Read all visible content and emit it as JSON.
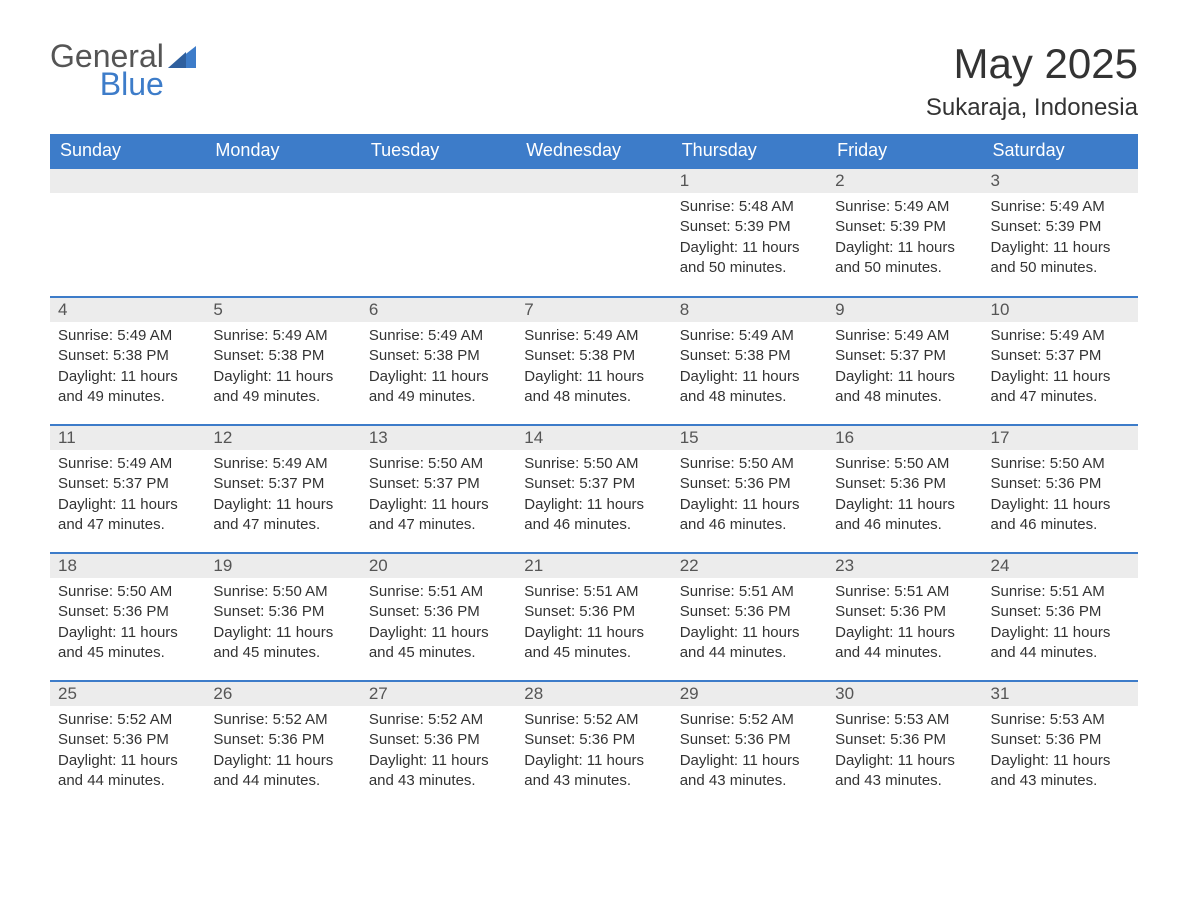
{
  "brand": {
    "line1": "General",
    "line2": "Blue"
  },
  "title": "May 2025",
  "location": "Sukaraja, Indonesia",
  "colors": {
    "header_bg": "#3d7cc9",
    "header_text": "#ffffff",
    "daynum_bg": "#ececec",
    "border": "#3d7cc9",
    "logo_blue": "#3d7cc9",
    "text": "#333333"
  },
  "day_headers": [
    "Sunday",
    "Monday",
    "Tuesday",
    "Wednesday",
    "Thursday",
    "Friday",
    "Saturday"
  ],
  "weeks": [
    [
      null,
      null,
      null,
      null,
      {
        "n": "1",
        "sunrise": "5:48 AM",
        "sunset": "5:39 PM",
        "daylight": "11 hours and 50 minutes."
      },
      {
        "n": "2",
        "sunrise": "5:49 AM",
        "sunset": "5:39 PM",
        "daylight": "11 hours and 50 minutes."
      },
      {
        "n": "3",
        "sunrise": "5:49 AM",
        "sunset": "5:39 PM",
        "daylight": "11 hours and 50 minutes."
      }
    ],
    [
      {
        "n": "4",
        "sunrise": "5:49 AM",
        "sunset": "5:38 PM",
        "daylight": "11 hours and 49 minutes."
      },
      {
        "n": "5",
        "sunrise": "5:49 AM",
        "sunset": "5:38 PM",
        "daylight": "11 hours and 49 minutes."
      },
      {
        "n": "6",
        "sunrise": "5:49 AM",
        "sunset": "5:38 PM",
        "daylight": "11 hours and 49 minutes."
      },
      {
        "n": "7",
        "sunrise": "5:49 AM",
        "sunset": "5:38 PM",
        "daylight": "11 hours and 48 minutes."
      },
      {
        "n": "8",
        "sunrise": "5:49 AM",
        "sunset": "5:38 PM",
        "daylight": "11 hours and 48 minutes."
      },
      {
        "n": "9",
        "sunrise": "5:49 AM",
        "sunset": "5:37 PM",
        "daylight": "11 hours and 48 minutes."
      },
      {
        "n": "10",
        "sunrise": "5:49 AM",
        "sunset": "5:37 PM",
        "daylight": "11 hours and 47 minutes."
      }
    ],
    [
      {
        "n": "11",
        "sunrise": "5:49 AM",
        "sunset": "5:37 PM",
        "daylight": "11 hours and 47 minutes."
      },
      {
        "n": "12",
        "sunrise": "5:49 AM",
        "sunset": "5:37 PM",
        "daylight": "11 hours and 47 minutes."
      },
      {
        "n": "13",
        "sunrise": "5:50 AM",
        "sunset": "5:37 PM",
        "daylight": "11 hours and 47 minutes."
      },
      {
        "n": "14",
        "sunrise": "5:50 AM",
        "sunset": "5:37 PM",
        "daylight": "11 hours and 46 minutes."
      },
      {
        "n": "15",
        "sunrise": "5:50 AM",
        "sunset": "5:36 PM",
        "daylight": "11 hours and 46 minutes."
      },
      {
        "n": "16",
        "sunrise": "5:50 AM",
        "sunset": "5:36 PM",
        "daylight": "11 hours and 46 minutes."
      },
      {
        "n": "17",
        "sunrise": "5:50 AM",
        "sunset": "5:36 PM",
        "daylight": "11 hours and 46 minutes."
      }
    ],
    [
      {
        "n": "18",
        "sunrise": "5:50 AM",
        "sunset": "5:36 PM",
        "daylight": "11 hours and 45 minutes."
      },
      {
        "n": "19",
        "sunrise": "5:50 AM",
        "sunset": "5:36 PM",
        "daylight": "11 hours and 45 minutes."
      },
      {
        "n": "20",
        "sunrise": "5:51 AM",
        "sunset": "5:36 PM",
        "daylight": "11 hours and 45 minutes."
      },
      {
        "n": "21",
        "sunrise": "5:51 AM",
        "sunset": "5:36 PM",
        "daylight": "11 hours and 45 minutes."
      },
      {
        "n": "22",
        "sunrise": "5:51 AM",
        "sunset": "5:36 PM",
        "daylight": "11 hours and 44 minutes."
      },
      {
        "n": "23",
        "sunrise": "5:51 AM",
        "sunset": "5:36 PM",
        "daylight": "11 hours and 44 minutes."
      },
      {
        "n": "24",
        "sunrise": "5:51 AM",
        "sunset": "5:36 PM",
        "daylight": "11 hours and 44 minutes."
      }
    ],
    [
      {
        "n": "25",
        "sunrise": "5:52 AM",
        "sunset": "5:36 PM",
        "daylight": "11 hours and 44 minutes."
      },
      {
        "n": "26",
        "sunrise": "5:52 AM",
        "sunset": "5:36 PM",
        "daylight": "11 hours and 44 minutes."
      },
      {
        "n": "27",
        "sunrise": "5:52 AM",
        "sunset": "5:36 PM",
        "daylight": "11 hours and 43 minutes."
      },
      {
        "n": "28",
        "sunrise": "5:52 AM",
        "sunset": "5:36 PM",
        "daylight": "11 hours and 43 minutes."
      },
      {
        "n": "29",
        "sunrise": "5:52 AM",
        "sunset": "5:36 PM",
        "daylight": "11 hours and 43 minutes."
      },
      {
        "n": "30",
        "sunrise": "5:53 AM",
        "sunset": "5:36 PM",
        "daylight": "11 hours and 43 minutes."
      },
      {
        "n": "31",
        "sunrise": "5:53 AM",
        "sunset": "5:36 PM",
        "daylight": "11 hours and 43 minutes."
      }
    ]
  ],
  "labels": {
    "sunrise": "Sunrise:",
    "sunset": "Sunset:",
    "daylight": "Daylight:"
  }
}
